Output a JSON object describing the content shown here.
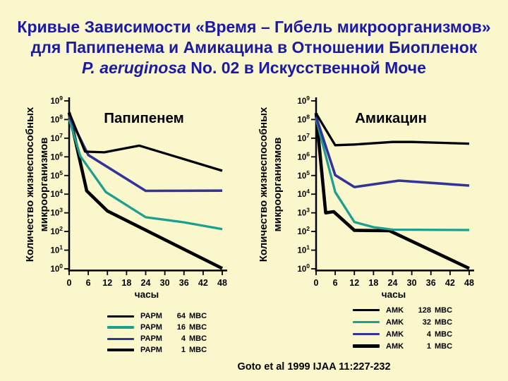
{
  "slide": {
    "background": "#FAF7CD",
    "title_color": "#1A1AA6",
    "title_line1": "Кривые Зависимости «Время – Гибель микроорганизмов»",
    "title_line2": "для Папипенема и Амикацина в Отношении Биопленок",
    "title_line3_italic": "P. aeruginosa",
    "title_line3_rest": " No. 02 в Искусственной Моче",
    "citation": "Goto et al 1999 IJAA 11:227-232"
  },
  "chart_data": [
    {
      "type": "line",
      "title": "Папипенем",
      "xlabel": "часы",
      "ylabel_line1": "Количество жизнеспособных",
      "ylabel_line2": "микроорганизмов",
      "x_ticks": [
        0,
        6,
        12,
        18,
        24,
        30,
        36,
        42,
        48
      ],
      "xlim": [
        0,
        48
      ],
      "y_scale": "log10",
      "y_exponents": [
        0,
        1,
        2,
        3,
        4,
        5,
        6,
        7,
        8,
        9
      ],
      "ylim": [
        1,
        1000000000.0
      ],
      "grid": false,
      "series": [
        {
          "name": "PAPM 64 MBC",
          "color": "#000000",
          "width": 4.6,
          "points": [
            [
              0,
              230000000.0
            ],
            [
              5.5,
              15000.0
            ],
            [
              12,
              1250.0
            ],
            [
              48,
              1.05
            ]
          ]
        },
        {
          "name": "PAPM 16 MBC",
          "color": "#1D9E8F",
          "width": 3.3,
          "points": [
            [
              0,
              105000000.0
            ],
            [
              3.5,
              1100000.0
            ],
            [
              11.5,
              13000.0
            ],
            [
              24,
              580.0
            ],
            [
              36,
              310.0
            ],
            [
              48,
              135.0
            ]
          ]
        },
        {
          "name": "PAPM 4 MBC",
          "color": "#33339A",
          "width": 3.6,
          "points": [
            [
              0,
              150000000.0
            ],
            [
              6,
              1250000.0
            ],
            [
              24,
              15000.0
            ],
            [
              48,
              15500.0
            ]
          ]
        },
        {
          "name": "PAPM 1 MBC",
          "color": "#000000",
          "width": 3.3,
          "points": [
            [
              0,
              240000000.0
            ],
            [
              5,
              1900000.0
            ],
            [
              11,
              1750000.0
            ],
            [
              22,
              4000000.0
            ],
            [
              48,
              180000.0
            ]
          ]
        }
      ]
    },
    {
      "type": "line",
      "title": "Амикацин",
      "xlabel": "часы",
      "ylabel_line1": "Количество жизнеспособных",
      "ylabel_line2": "микроорганизмов",
      "x_ticks": [
        0,
        6,
        12,
        18,
        24,
        30,
        36,
        42,
        48
      ],
      "xlim": [
        0,
        48
      ],
      "y_scale": "log10",
      "y_exponents": [
        0,
        1,
        2,
        3,
        4,
        5,
        6,
        7,
        8,
        9
      ],
      "ylim": [
        1,
        1000000000.0
      ],
      "grid": false,
      "series": [
        {
          "name": "AMK 128 MBC",
          "color": "#000000",
          "width": 4.6,
          "points": [
            [
              0,
              220000000.0
            ],
            [
              3,
              1000.0
            ],
            [
              5.5,
              1150.0
            ],
            [
              12,
              115.0
            ],
            [
              23,
              110.0
            ],
            [
              48,
              1.05
            ]
          ]
        },
        {
          "name": "AMK 32 MBC",
          "color": "#1D9E8F",
          "width": 3.3,
          "points": [
            [
              0,
              110000000.0
            ],
            [
              6,
              13000.0
            ],
            [
              12,
              320.0
            ],
            [
              18,
              170.0
            ],
            [
              24,
              125.0
            ],
            [
              48,
              120.0
            ]
          ]
        },
        {
          "name": "AMK 4 MBC",
          "color": "#33339A",
          "width": 3.6,
          "points": [
            [
              0,
              140000000.0
            ],
            [
              6,
              105000.0
            ],
            [
              12,
              24000.0
            ],
            [
              26,
              53000.0
            ],
            [
              48,
              29000.0
            ]
          ]
        },
        {
          "name": "AMK 1 MBC",
          "color": "#000000",
          "width": 3.3,
          "points": [
            [
              0,
              210000000.0
            ],
            [
              6,
              4200000.0
            ],
            [
              12,
              4600000.0
            ],
            [
              24,
              6300000.0
            ],
            [
              30,
              6300000.0
            ],
            [
              48,
              5100000.0
            ]
          ]
        }
      ]
    }
  ],
  "legends": [
    {
      "items": [
        {
          "drug": "PAPM",
          "value": "64",
          "unit": "MBC",
          "color": "#000000",
          "thickness": 3
        },
        {
          "drug": "PAPM",
          "value": "16",
          "unit": "MBC",
          "color": "#1D9E8F",
          "thickness": 3.4
        },
        {
          "drug": "PAPM",
          "value": "4",
          "unit": "MBC",
          "color": "#33339A",
          "thickness": 3
        },
        {
          "drug": "PAPM",
          "value": "1",
          "unit": "MBC",
          "color": "#000000",
          "thickness": 4.6
        }
      ]
    },
    {
      "items": [
        {
          "drug": "AMK",
          "value": "128",
          "unit": "MBC",
          "color": "#000000",
          "thickness": 3
        },
        {
          "drug": "AMK",
          "value": "32",
          "unit": "MBC",
          "color": "#1D9E8F",
          "thickness": 3.4
        },
        {
          "drug": "AMK",
          "value": "4",
          "unit": "MBC",
          "color": "#33339A",
          "thickness": 3
        },
        {
          "drug": "AMK",
          "value": "1",
          "unit": "MBC",
          "color": "#000000",
          "thickness": 4.6
        }
      ]
    }
  ]
}
